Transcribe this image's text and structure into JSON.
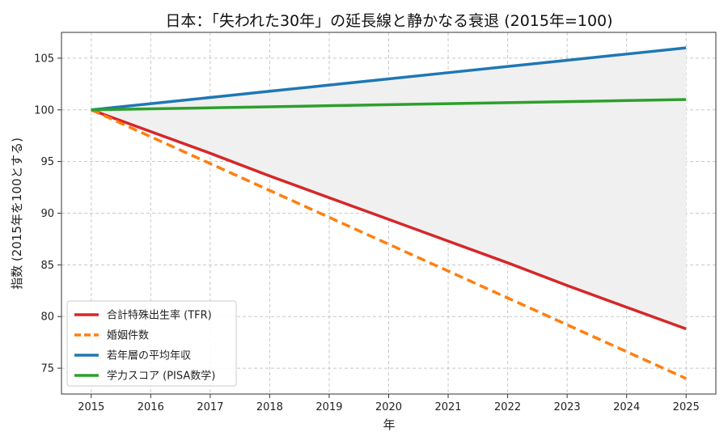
{
  "chart_data": {
    "type": "line",
    "title": "日本：「失われた30年」の延長線と静かなる衰退 (2015年=100)",
    "xlabel": "年",
    "ylabel": "指数 (2015年を100とする)",
    "x": [
      2015,
      2016,
      2017,
      2018,
      2019,
      2020,
      2021,
      2022,
      2023,
      2024,
      2025
    ],
    "xlim": [
      2014.5,
      2025.5
    ],
    "ylim": [
      72.5,
      107.5
    ],
    "yticks": [
      75,
      80,
      85,
      90,
      95,
      100,
      105
    ],
    "grid": true,
    "legend_position": "bottom-left",
    "shaded_region": {
      "between": [
        "若年層の平均年収",
        "合計特殊出生率 (TFR)"
      ],
      "color": "#f0f0f0"
    },
    "series": [
      {
        "name": "合計特殊出生率 (TFR)",
        "color": "#d62728",
        "dash": "solid",
        "values": [
          100,
          97.9,
          95.8,
          93.6,
          91.5,
          89.4,
          87.3,
          85.2,
          83.0,
          80.9,
          78.8
        ]
      },
      {
        "name": "婚姻件数",
        "color": "#ff7f0e",
        "dash": "dashed",
        "values": [
          100,
          97.4,
          94.8,
          92.2,
          89.6,
          87.0,
          84.4,
          81.8,
          79.2,
          76.6,
          74.0
        ]
      },
      {
        "name": "若年層の平均年収",
        "color": "#1f77b4",
        "dash": "solid",
        "values": [
          100,
          100.6,
          101.2,
          101.8,
          102.4,
          103.0,
          103.6,
          104.2,
          104.8,
          105.4,
          106.0
        ]
      },
      {
        "name": "学力スコア (PISA数学)",
        "color": "#2ca02c",
        "dash": "solid",
        "values": [
          100,
          100.1,
          100.2,
          100.3,
          100.4,
          100.5,
          100.6,
          100.7,
          100.8,
          100.9,
          101.0
        ]
      }
    ]
  }
}
